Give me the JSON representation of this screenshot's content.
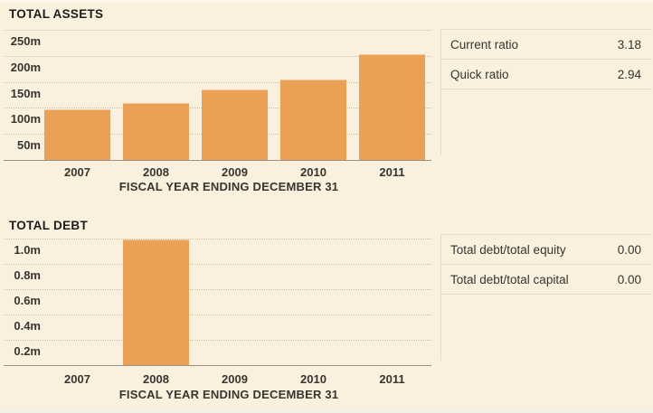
{
  "colors": {
    "background": "#FAF0DE",
    "bar": "#EAA055",
    "gridline": "#CCBFA9",
    "axis_line": "#949188",
    "tick_text": "#38342E",
    "title_text": "#1E1C19",
    "panel_divider": "#E8DCC7"
  },
  "chart_data": [
    {
      "type": "bar",
      "title": "TOTAL ASSETS",
      "xlabel": "FISCAL YEAR ENDING DECEMBER 31",
      "ylabel": "",
      "categories": [
        "2007",
        "2008",
        "2009",
        "2010",
        "2011"
      ],
      "values": [
        98,
        110,
        136,
        154,
        203
      ],
      "unit": "m",
      "ylim": [
        0,
        250
      ],
      "ytick_labels": [
        "250m",
        "200m",
        "150m",
        "100m",
        "50m"
      ],
      "grid": "horizontal-dotted",
      "legend": "none"
    },
    {
      "type": "bar",
      "title": "TOTAL DEBT",
      "xlabel": "FISCAL YEAR ENDING DECEMBER 31",
      "ylabel": "",
      "categories": [
        "2007",
        "2008",
        "2009",
        "2010",
        "2011"
      ],
      "values": [
        0,
        0.99,
        0,
        0,
        0
      ],
      "unit": "m",
      "ylim": [
        0,
        1.0
      ],
      "ytick_labels": [
        "1.0m",
        "0.8m",
        "0.6m",
        "0.4m",
        "0.2m"
      ],
      "grid": "horizontal-dotted",
      "legend": "none"
    }
  ],
  "panels": [
    {
      "rows": [
        {
          "label": "Current ratio",
          "value": "3.18"
        },
        {
          "label": "Quick ratio",
          "value": "2.94"
        }
      ]
    },
    {
      "rows": [
        {
          "label": "Total debt/total equity",
          "value": "0.00"
        },
        {
          "label": "Total debt/total capital",
          "value": "0.00"
        }
      ]
    }
  ]
}
